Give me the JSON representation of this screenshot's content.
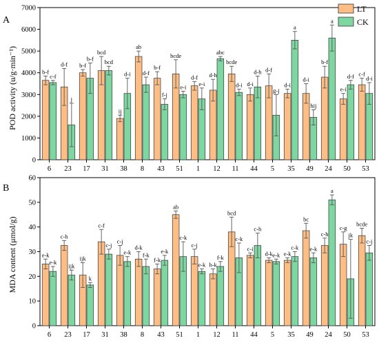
{
  "colors": {
    "LT": "#FDBE86",
    "CK": "#7ED6A0",
    "edge": "#333333"
  },
  "chart_data": [
    {
      "type": "bar",
      "panel": "A",
      "ylabel": "POD activity (u/g·min⁻¹)",
      "ylim": [
        0,
        7000
      ],
      "yticks": [
        0,
        1000,
        2000,
        3000,
        4000,
        5000,
        6000,
        7000
      ],
      "categories": [
        "6",
        "23",
        "17",
        "31",
        "38",
        "8",
        "43",
        "51",
        "1",
        "12",
        "11",
        "44",
        "5",
        "35",
        "49",
        "24",
        "50",
        "53"
      ],
      "legend": {
        "placement": "top-right",
        "entries": [
          "LT",
          "CK"
        ]
      },
      "series": [
        {
          "name": "LT",
          "values": [
            3650,
            3350,
            4000,
            4100,
            1900,
            4750,
            3750,
            3950,
            3400,
            3200,
            3950,
            3000,
            3400,
            3050,
            3050,
            3800,
            2800,
            3450
          ],
          "errors": [
            200,
            850,
            150,
            650,
            150,
            250,
            300,
            650,
            200,
            500,
            350,
            300,
            550,
            200,
            450,
            500,
            250,
            300
          ],
          "labels": [
            "b-f",
            "d-f",
            "b-f",
            "bcd",
            "ij",
            "ab",
            "b-f",
            "bcde",
            "d-f",
            "d-h",
            "bcde",
            "d-i",
            "d-f",
            "d-i",
            "d-i",
            "b-f",
            "e-i",
            "c-f"
          ]
        },
        {
          "name": "CK",
          "values": [
            3550,
            1600,
            3750,
            4100,
            3050,
            3450,
            2550,
            3000,
            2800,
            4650,
            3100,
            3350,
            2050,
            5500,
            1950,
            5600,
            3450,
            3050
          ],
          "errors": [
            100,
            1000,
            700,
            200,
            700,
            350,
            250,
            150,
            500,
            100,
            150,
            500,
            950,
            400,
            350,
            600,
            200,
            500
          ],
          "labels": [
            "c-f",
            "j",
            "b-f",
            "bcd",
            "d-i",
            "d-f",
            "f-j",
            "e-i",
            "e-i",
            "abc",
            "d-i",
            "d-h",
            "g-j",
            "a",
            "hij",
            "a",
            "d-f",
            "d-i"
          ]
        }
      ]
    },
    {
      "type": "bar",
      "panel": "B",
      "ylabel": "MDA content (μmol/g)",
      "ylim": [
        0,
        60
      ],
      "yticks": [
        0,
        10,
        20,
        30,
        40,
        50,
        60
      ],
      "categories": [
        "6",
        "23",
        "17",
        "31",
        "38",
        "8",
        "43",
        "51",
        "1",
        "12",
        "11",
        "44",
        "5",
        "35",
        "49",
        "24",
        "50",
        "53"
      ],
      "series": [
        {
          "name": "LT",
          "values": [
            25,
            32.5,
            20.5,
            34,
            28.5,
            27,
            23,
            45,
            28,
            21,
            38,
            28.5,
            26.5,
            26.5,
            38.5,
            32.5,
            33,
            36.5
          ],
          "errors": [
            2,
            2,
            5,
            5,
            4,
            3,
            2,
            1.5,
            3,
            2,
            6,
            1,
            1,
            1,
            3,
            3,
            5,
            3
          ],
          "labels": [
            "e-k",
            "c-h",
            "ijk",
            "c-f",
            "c-j",
            "d-k",
            "f-k",
            "ab",
            "c-j",
            "h-k",
            "bcd",
            "c-i",
            "d-k",
            "e-k",
            "bc",
            "c-h",
            "c-g",
            "bcde"
          ]
        },
        {
          "name": "CK",
          "values": [
            22,
            20.5,
            16.5,
            29,
            26,
            24,
            26.5,
            28,
            22,
            24,
            27.5,
            32.5,
            26,
            28,
            27.5,
            51,
            19,
            29.5
          ],
          "errors": [
            2,
            2,
            1,
            2,
            2,
            3,
            2,
            6,
            1,
            2,
            6,
            5,
            1,
            2,
            2,
            2,
            16,
            3
          ],
          "labels": [
            "e-k",
            "ijk",
            "k",
            "c-j",
            "e-k",
            "f-k",
            "e-k",
            "c-k",
            "e-k",
            "f-k",
            "c-k",
            "c-h",
            "e-k",
            "c-k",
            "e-k",
            "a",
            "jk",
            "c-j"
          ]
        }
      ]
    }
  ]
}
